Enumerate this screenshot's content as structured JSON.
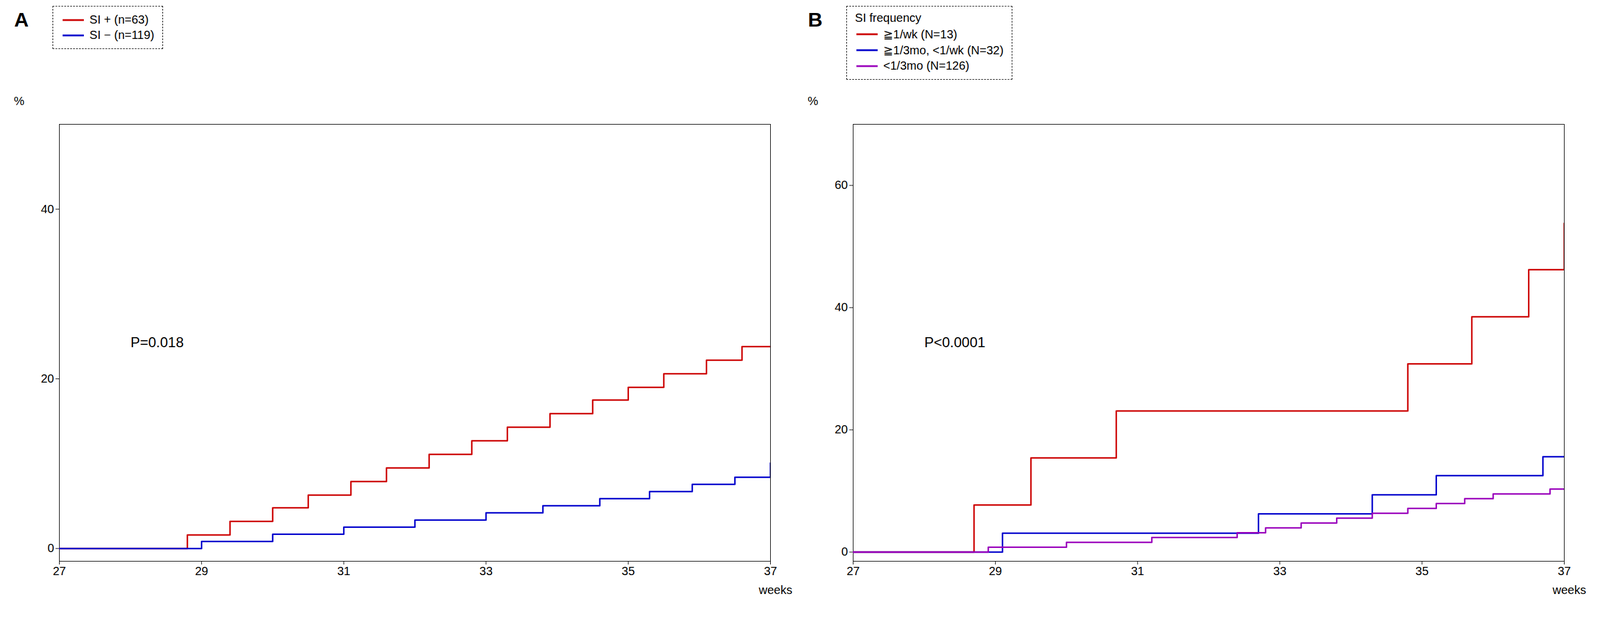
{
  "chart_data": [
    {
      "type": "step",
      "title": "A",
      "annotations": [
        "P=0.018"
      ],
      "xlabel": "weeks",
      "ylabel": "%",
      "xlim": [
        27,
        37
      ],
      "ylim": [
        -1.5,
        50
      ],
      "xticks": [
        27,
        29,
        31,
        33,
        35,
        37
      ],
      "yticks": [
        0,
        20,
        40
      ],
      "legend": "upper-left",
      "series": [
        {
          "name": "SI + (n=63)",
          "color": "#cc0000",
          "x": [
            27,
            28.6,
            28.8,
            29.1,
            29.4,
            29.7,
            30.0,
            30.3,
            30.5,
            30.8,
            31.1,
            31.4,
            31.6,
            31.9,
            32.2,
            32.5,
            32.8,
            33.0,
            33.3,
            33.6,
            33.9,
            34.2,
            34.5,
            34.7,
            35.0,
            35.3,
            35.5,
            35.8,
            36.1,
            36.4,
            36.6,
            36.9,
            37.0
          ],
          "values": [
            0,
            0,
            1.6,
            1.6,
            3.2,
            3.2,
            4.8,
            4.8,
            6.3,
            6.3,
            7.9,
            7.9,
            9.5,
            9.5,
            11.1,
            11.1,
            12.7,
            12.7,
            14.3,
            14.3,
            15.9,
            15.9,
            17.5,
            17.5,
            19.0,
            19.0,
            20.6,
            20.6,
            22.2,
            22.2,
            23.8,
            23.8,
            23.8
          ]
        },
        {
          "name": "SI − (n=119)",
          "color": "#0000cc",
          "x": [
            27,
            28.7,
            29.0,
            29.5,
            30.0,
            30.5,
            31.0,
            31.5,
            32.0,
            32.5,
            33.0,
            33.4,
            33.8,
            34.2,
            34.6,
            35.0,
            35.3,
            35.6,
            35.9,
            36.2,
            36.5,
            36.8,
            37.0
          ],
          "values": [
            0,
            0,
            0.84,
            0.84,
            1.68,
            1.68,
            2.52,
            2.52,
            3.36,
            3.36,
            4.2,
            4.2,
            5.04,
            5.04,
            5.88,
            5.88,
            6.72,
            6.72,
            7.56,
            7.56,
            8.4,
            8.4,
            10.08
          ]
        }
      ]
    },
    {
      "type": "step",
      "title": "B",
      "annotations": [
        "P<0.0001"
      ],
      "xlabel": "weeks",
      "ylabel": "%",
      "xlim": [
        27,
        37
      ],
      "ylim": [
        -1.5,
        70
      ],
      "xticks": [
        27,
        29,
        31,
        33,
        35,
        37
      ],
      "yticks": [
        0,
        20,
        40,
        60
      ],
      "legend": "upper-left",
      "legend_title": "SI frequency",
      "series": [
        {
          "name": "≧1/wk (N=13)",
          "color": "#cc0000",
          "x": [
            27,
            28.4,
            28.7,
            29.0,
            29.5,
            30.0,
            30.7,
            31.2,
            34.5,
            34.8,
            35.2,
            35.7,
            36.1,
            36.5,
            36.8,
            37.0
          ],
          "values": [
            0,
            0,
            7.7,
            7.7,
            15.4,
            15.4,
            23.1,
            23.1,
            23.1,
            30.8,
            30.8,
            38.5,
            38.5,
            46.2,
            46.2,
            53.8
          ]
        },
        {
          "name": "≧1/3mo, <1/wk (N=32)",
          "color": "#0000cc",
          "x": [
            27,
            28.7,
            29.1,
            29.6,
            32.2,
            32.7,
            33.7,
            34.3,
            34.8,
            35.2,
            36.3,
            36.7,
            37.0
          ],
          "values": [
            0,
            0,
            3.1,
            3.1,
            3.1,
            6.25,
            6.25,
            9.38,
            9.38,
            12.5,
            12.5,
            15.6,
            15.6
          ]
        },
        {
          "name": "<1/3mo (N=126)",
          "color": "#9900bb",
          "x": [
            27,
            28.5,
            28.9,
            29.4,
            30.0,
            30.6,
            31.2,
            31.8,
            32.4,
            32.8,
            33.3,
            33.8,
            34.3,
            34.8,
            35.2,
            35.6,
            36.0,
            36.4,
            36.8,
            37.0
          ],
          "values": [
            0,
            0,
            0.79,
            0.79,
            1.59,
            1.59,
            2.38,
            2.38,
            3.17,
            3.97,
            4.76,
            5.56,
            6.35,
            7.14,
            7.94,
            8.73,
            9.52,
            9.52,
            10.32,
            10.32
          ]
        }
      ]
    }
  ]
}
